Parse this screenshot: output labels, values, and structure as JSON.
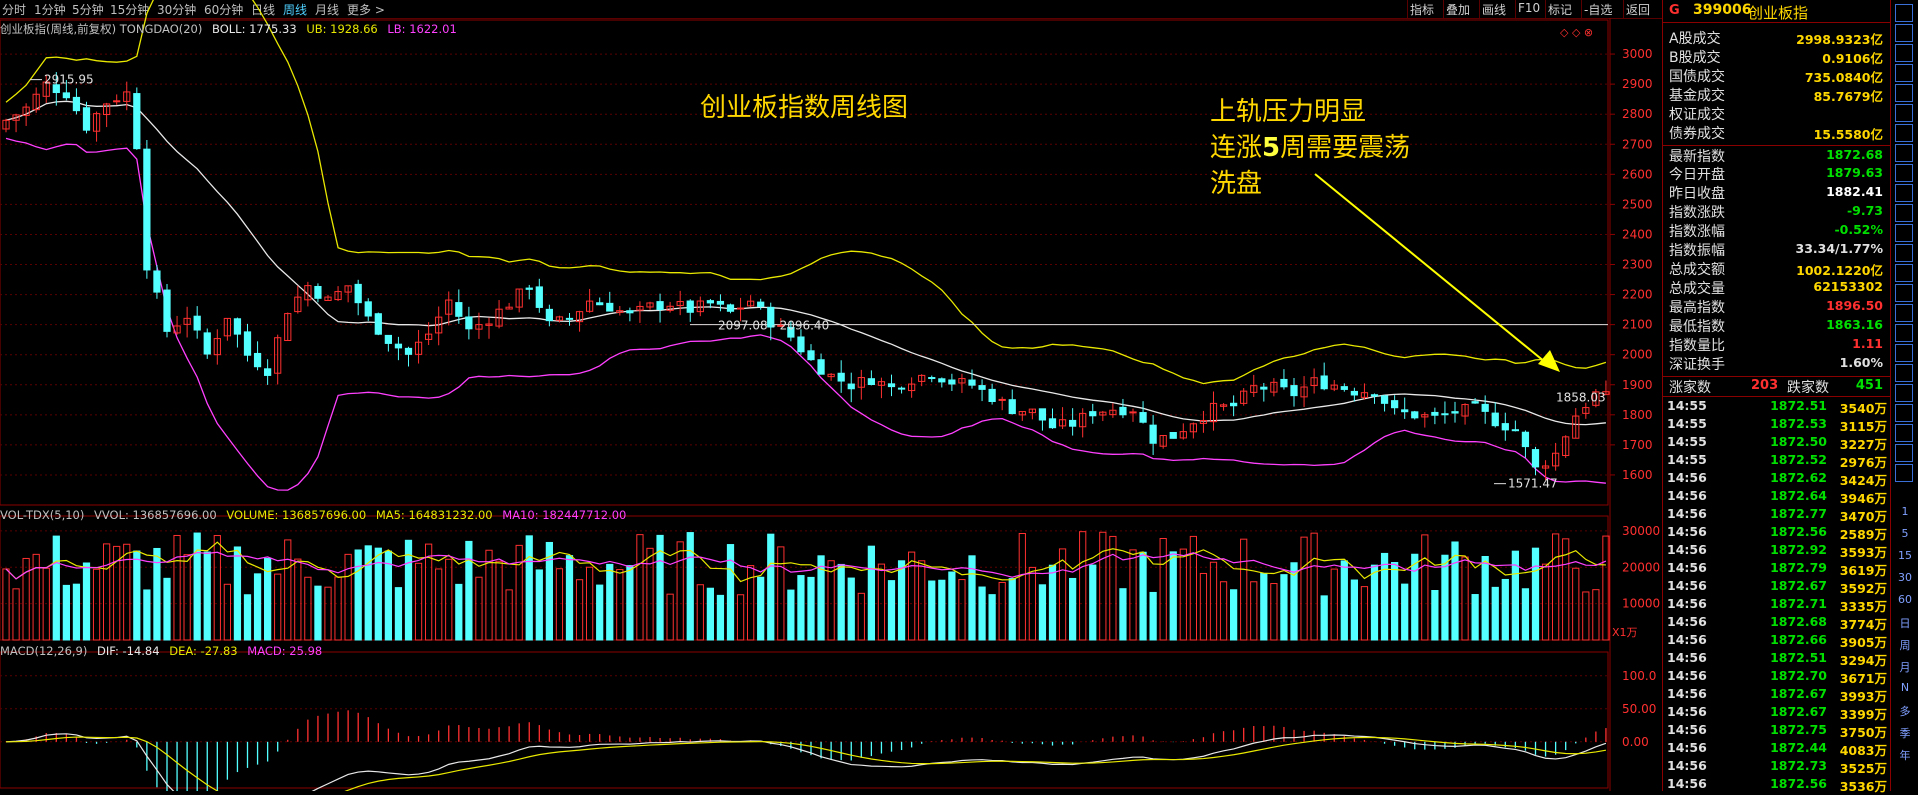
{
  "periods": [
    "分时",
    "1分钟",
    "5分钟",
    "15分钟",
    "30分钟",
    "60分钟",
    "日线",
    "周线",
    "月线",
    "更多"
  ],
  "active_period": "周线",
  "toolbar": [
    "指标",
    "叠加",
    "画线",
    "F10",
    "标记",
    "-自选",
    "返回"
  ],
  "legend_main": {
    "name": "创业板指(周线,前复权) TONGDAO(20)",
    "boll": "BOLL: 1775.33",
    "ub": "UB: 1928.66",
    "lb": "LB: 1622.01"
  },
  "legend_vol": {
    "name": "VOL-TDX(5,10)",
    "vvol": "VVOL: 136857696.00",
    "volume": "VOLUME: 136857696.00",
    "ma5": "MA5: 164831232.00",
    "ma10": "MA10: 182447712.00"
  },
  "legend_macd": {
    "name": "MACD(12,26,9)",
    "dif": "DIF: -14.84",
    "dea": "DEA: -27.83",
    "macd": "MACD: 25.98"
  },
  "annotations": {
    "title": "创业板指数周线图",
    "line1": "上轨压力明显",
    "line2_a": "连涨",
    "line2_b": "5",
    "line2_c": "周需要震荡",
    "line3": "洗盘"
  },
  "colors": {
    "up": "#ff3030",
    "down": "#54ffff",
    "ma_white": "#e8e8e8",
    "ma_yellow": "#e8e800",
    "ma_magenta": "#ff40ff",
    "annotation": "#ffd700"
  },
  "chart_data": [
    {
      "type": "candlestick",
      "ylim": [
        1500,
        3100
      ],
      "yticks": [
        "3000",
        "2900",
        "2800",
        "2700",
        "2600",
        "2500",
        "2400",
        "2300",
        "2200",
        "2100",
        "2000",
        "1900",
        "1800",
        "1700",
        "1600"
      ],
      "labels": {
        "high": "2915.95",
        "low": "1571.47",
        "price_tag": "1858.03",
        "range": "2097.08 - 2096.40"
      },
      "hline": 2100,
      "seed": 7,
      "anchors": [
        [
          0,
          2780
        ],
        [
          2,
          2820
        ],
        [
          4,
          2900
        ],
        [
          6,
          2870
        ],
        [
          8,
          2760
        ],
        [
          10,
          2840
        ],
        [
          12,
          2870
        ],
        [
          13,
          2700
        ],
        [
          14,
          2300
        ],
        [
          16,
          2080
        ],
        [
          18,
          2130
        ],
        [
          20,
          2000
        ],
        [
          22,
          2130
        ],
        [
          24,
          2000
        ],
        [
          26,
          1950
        ],
        [
          28,
          2150
        ],
        [
          30,
          2230
        ],
        [
          32,
          2180
        ],
        [
          34,
          2230
        ],
        [
          36,
          2120
        ],
        [
          38,
          2050
        ],
        [
          40,
          2000
        ],
        [
          42,
          2070
        ],
        [
          44,
          2180
        ],
        [
          46,
          2080
        ],
        [
          48,
          2120
        ],
        [
          50,
          2170
        ],
        [
          52,
          2230
        ],
        [
          54,
          2100
        ],
        [
          56,
          2120
        ],
        [
          58,
          2180
        ],
        [
          60,
          2160
        ],
        [
          62,
          2130
        ],
        [
          64,
          2160
        ],
        [
          66,
          2170
        ],
        [
          68,
          2150
        ],
        [
          70,
          2170
        ],
        [
          72,
          2140
        ],
        [
          74,
          2180
        ],
        [
          76,
          2110
        ],
        [
          78,
          2060
        ],
        [
          80,
          1980
        ],
        [
          82,
          1930
        ],
        [
          84,
          1900
        ],
        [
          86,
          1920
        ],
        [
          88,
          1890
        ],
        [
          90,
          1920
        ],
        [
          92,
          1940
        ],
        [
          94,
          1910
        ],
        [
          96,
          1900
        ],
        [
          98,
          1860
        ],
        [
          100,
          1820
        ],
        [
          102,
          1810
        ],
        [
          104,
          1760
        ],
        [
          106,
          1770
        ],
        [
          108,
          1810
        ],
        [
          110,
          1820
        ],
        [
          112,
          1820
        ],
        [
          114,
          1720
        ],
        [
          116,
          1730
        ],
        [
          118,
          1780
        ],
        [
          120,
          1820
        ],
        [
          122,
          1830
        ],
        [
          124,
          1890
        ],
        [
          126,
          1890
        ],
        [
          128,
          1870
        ],
        [
          130,
          1910
        ],
        [
          132,
          1900
        ],
        [
          134,
          1880
        ],
        [
          136,
          1880
        ],
        [
          138,
          1810
        ],
        [
          140,
          1800
        ],
        [
          142,
          1790
        ],
        [
          144,
          1810
        ],
        [
          146,
          1820
        ],
        [
          148,
          1780
        ],
        [
          150,
          1750
        ],
        [
          152,
          1620
        ],
        [
          154,
          1670
        ],
        [
          156,
          1800
        ],
        [
          158,
          1870
        ],
        [
          159,
          1858
        ]
      ]
    },
    {
      "type": "bar",
      "series": "volume",
      "ylim": [
        0,
        33000
      ],
      "yticks": [
        "30000",
        "20000",
        "10000"
      ],
      "unit": "X1万"
    },
    {
      "type": "bar",
      "series": "macd",
      "ylim": [
        -70,
        130
      ],
      "yticks": [
        "100.0",
        "50.00",
        "0.00"
      ]
    }
  ],
  "right_panel": {
    "code": "399006",
    "name": "创业板指",
    "flag": "G",
    "rows": [
      {
        "k": "A股成交",
        "v": "2998.9323亿",
        "c": "#ffd700"
      },
      {
        "k": "B股成交",
        "v": "0.9106亿",
        "c": "#ffd700"
      },
      {
        "k": "国债成交",
        "v": "735.0840亿",
        "c": "#ffd700"
      },
      {
        "k": "基金成交",
        "v": "85.7679亿",
        "c": "#ffd700"
      },
      {
        "k": "权证成交",
        "v": "",
        "c": "#ffd700"
      },
      {
        "k": "债券成交",
        "v": "15.5580亿",
        "c": "#ffd700"
      },
      {
        "k": "最新指数",
        "v": "1872.68",
        "c": "#00e000"
      },
      {
        "k": "今日开盘",
        "v": "1879.63",
        "c": "#00e000"
      },
      {
        "k": "昨日收盘",
        "v": "1882.41",
        "c": "#ffffff"
      },
      {
        "k": "指数涨跌",
        "v": "-9.73",
        "c": "#00e000"
      },
      {
        "k": "指数涨幅",
        "v": "-0.52%",
        "c": "#00e000"
      },
      {
        "k": "指数振幅",
        "v": "33.34/1.77%",
        "c": "#e0e0e0"
      },
      {
        "k": "总成交额",
        "v": "1002.1220亿",
        "c": "#ffd700"
      },
      {
        "k": "总成交量",
        "v": "62153302",
        "c": "#ffd700"
      },
      {
        "k": "最高指数",
        "v": "1896.50",
        "c": "#ff3030"
      },
      {
        "k": "最低指数",
        "v": "1863.16",
        "c": "#00e000"
      },
      {
        "k": "指数量比",
        "v": "1.11",
        "c": "#ff3030"
      },
      {
        "k": "深证换手",
        "v": "1.60%",
        "c": "#e0e0e0"
      }
    ],
    "rise_label": "涨家数",
    "rise": "203",
    "fall_label": "跌家数",
    "fall": "451",
    "ticks": [
      [
        "14:55",
        "1872.51",
        "3540万"
      ],
      [
        "14:55",
        "1872.53",
        "3115万"
      ],
      [
        "14:55",
        "1872.50",
        "3227万"
      ],
      [
        "14:55",
        "1872.52",
        "2976万"
      ],
      [
        "14:56",
        "1872.62",
        "3424万"
      ],
      [
        "14:56",
        "1872.64",
        "3946万"
      ],
      [
        "14:56",
        "1872.77",
        "3470万"
      ],
      [
        "14:56",
        "1872.56",
        "2589万"
      ],
      [
        "14:56",
        "1872.92",
        "3593万"
      ],
      [
        "14:56",
        "1872.79",
        "3619万"
      ],
      [
        "14:56",
        "1872.67",
        "3592万"
      ],
      [
        "14:56",
        "1872.71",
        "3335万"
      ],
      [
        "14:56",
        "1872.68",
        "3774万"
      ],
      [
        "14:56",
        "1872.66",
        "3905万"
      ],
      [
        "14:56",
        "1872.51",
        "3294万"
      ],
      [
        "14:56",
        "1872.70",
        "3671万"
      ],
      [
        "14:56",
        "1872.67",
        "3993万"
      ],
      [
        "14:56",
        "1872.67",
        "3399万"
      ],
      [
        "14:56",
        "1872.75",
        "3750万"
      ],
      [
        "14:56",
        "1872.44",
        "4083万"
      ],
      [
        "14:56",
        "1872.73",
        "3525万"
      ],
      [
        "14:56",
        "1872.56",
        "3536万"
      ]
    ]
  },
  "sidebar_labels": [
    "1",
    "5",
    "15",
    "30",
    "60",
    "日",
    "周",
    "月",
    "N",
    "多",
    "季",
    "年"
  ]
}
